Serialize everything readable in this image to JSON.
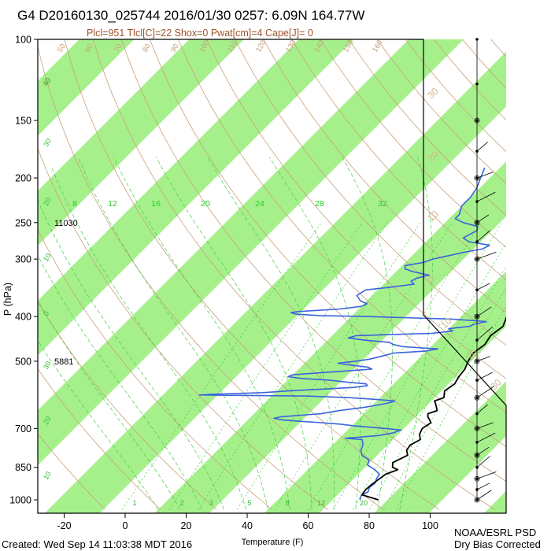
{
  "title": "G4 D20160130_025744 2016/01/30 0257:  6.09N 164.77W",
  "subtitle": "Plcl=951 Tlcl[C]=22 Shox=0 Pwat[cm]=4 Cape[J]= 0",
  "footer": {
    "created": "Created: Wed Sep 14 11:03:38 MDT 2016",
    "org": "NOAA/ESRL PSD",
    "note": "Dry Bias Corrected"
  },
  "colors": {
    "isotherm_band": "#a6f08c",
    "temperature": "#000000",
    "dewpoint": "#3a64dc",
    "dry_adiabat": "#c8a07a",
    "moist_adiabat": "#44cc44",
    "mixing_ratio": "#22cc22"
  },
  "chart_data": {
    "type": "line",
    "chart_kind": "Skew-T log-P diagram",
    "xlabel": "Temperature (F)",
    "ylabel": "P (hPa)",
    "xlim": [
      -30,
      100
    ],
    "ylim": [
      1000,
      100
    ],
    "y_scale": "log",
    "x_ticks": [
      "-20",
      "0",
      "20",
      "40",
      "60",
      "80",
      "100"
    ],
    "y_ticks": [
      "100",
      "150",
      "200",
      "250",
      "300",
      "400",
      "500",
      "700",
      "850",
      "1000"
    ],
    "height_labels": [
      {
        "pressure": 250,
        "text": "11030"
      },
      {
        "pressure": 500,
        "text": "5881"
      }
    ],
    "series": [
      {
        "label": "temperature",
        "points": [
          [
            1000,
            83
          ],
          [
            975,
            76
          ],
          [
            950,
            75.5
          ],
          [
            925,
            75.8
          ],
          [
            900,
            76.5
          ],
          [
            880,
            77
          ],
          [
            860,
            79.5
          ],
          [
            850,
            77
          ],
          [
            830,
            75.5
          ],
          [
            800,
            78
          ],
          [
            780,
            76
          ],
          [
            760,
            75.5
          ],
          [
            740,
            77
          ],
          [
            720,
            75
          ],
          [
            700,
            74
          ],
          [
            680,
            75
          ],
          [
            660,
            72
          ],
          [
            650,
            71
          ],
          [
            640,
            73
          ],
          [
            620,
            70.5
          ],
          [
            610,
            69
          ],
          [
            600,
            71
          ],
          [
            580,
            69
          ],
          [
            560,
            70
          ],
          [
            540,
            69
          ],
          [
            520,
            68.5
          ],
          [
            500,
            67
          ],
          [
            480,
            66
          ],
          [
            460,
            67
          ],
          [
            440,
            66
          ],
          [
            420,
            67
          ],
          [
            400,
            65
          ],
          [
            380,
            62.5
          ],
          [
            350,
            60
          ],
          [
            330,
            57
          ],
          [
            300,
            53
          ],
          [
            280,
            51
          ],
          [
            260,
            47
          ],
          [
            250,
            44.5
          ],
          [
            230,
            40
          ],
          [
            210,
            36
          ],
          [
            190,
            34
          ],
          [
            170,
            31
          ]
        ]
      },
      {
        "label": "dewpoint",
        "points": [
          [
            1000,
            77
          ],
          [
            980,
            76
          ],
          [
            960,
            77
          ],
          [
            940,
            76
          ],
          [
            920,
            76.5
          ],
          [
            900,
            75.5
          ],
          [
            880,
            75
          ],
          [
            860,
            72
          ],
          [
            840,
            68
          ],
          [
            820,
            67
          ],
          [
            800,
            63
          ],
          [
            780,
            61
          ],
          [
            760,
            60
          ],
          [
            740,
            58
          ],
          [
            735,
            52
          ],
          [
            725,
            62
          ],
          [
            715,
            66
          ],
          [
            705,
            67.5
          ],
          [
            700,
            62
          ],
          [
            690,
            50
          ],
          [
            685,
            46
          ],
          [
            680,
            39
          ],
          [
            675,
            31
          ],
          [
            670,
            25
          ],
          [
            665,
            22
          ],
          [
            660,
            24
          ],
          [
            650,
            36
          ],
          [
            640,
            41
          ],
          [
            630,
            48
          ],
          [
            620,
            53
          ],
          [
            615,
            55
          ],
          [
            610,
            56
          ],
          [
            605,
            49
          ],
          [
            600,
            40
          ],
          [
            595,
            25
          ],
          [
            592,
            -10
          ],
          [
            590,
            -6
          ],
          [
            585,
            10
          ],
          [
            580,
            18
          ],
          [
            575,
            28
          ],
          [
            570,
            38
          ],
          [
            565,
            42
          ],
          [
            560,
            41
          ],
          [
            555,
            34
          ],
          [
            550,
            28
          ],
          [
            545,
            18
          ],
          [
            540,
            13
          ],
          [
            535,
            14
          ],
          [
            530,
            22
          ],
          [
            525,
            30
          ],
          [
            520,
            38
          ],
          [
            515,
            36
          ],
          [
            510,
            30
          ],
          [
            505,
            25
          ],
          [
            500,
            30
          ],
          [
            495,
            34
          ],
          [
            490,
            36
          ],
          [
            485,
            38
          ],
          [
            480,
            40
          ],
          [
            475,
            50
          ],
          [
            470,
            53
          ],
          [
            465,
            41
          ],
          [
            460,
            37
          ],
          [
            455,
            35
          ],
          [
            450,
            26
          ],
          [
            445,
            20
          ],
          [
            440,
            22
          ],
          [
            435,
            46
          ],
          [
            430,
            52
          ],
          [
            425,
            50
          ],
          [
            420,
            56
          ],
          [
            415,
            57
          ],
          [
            410,
            60
          ],
          [
            405,
            48
          ],
          [
            400,
            20
          ],
          [
            398,
            3
          ],
          [
            395,
            -5
          ],
          [
            392,
            -7
          ],
          [
            390,
            -5
          ],
          [
            385,
            8
          ],
          [
            380,
            14
          ],
          [
            375,
            15
          ],
          [
            370,
            12
          ],
          [
            360,
            9
          ],
          [
            350,
            10
          ],
          [
            345,
            18
          ],
          [
            340,
            24
          ],
          [
            335,
            22
          ],
          [
            330,
            23
          ],
          [
            325,
            26
          ],
          [
            320,
            20
          ],
          [
            315,
            16
          ],
          [
            310,
            15
          ],
          [
            305,
            20
          ],
          [
            300,
            22
          ],
          [
            295,
            26
          ],
          [
            290,
            30
          ],
          [
            285,
            35
          ],
          [
            280,
            36
          ],
          [
            275,
            28
          ],
          [
            270,
            25
          ],
          [
            265,
            26
          ],
          [
            260,
            27
          ],
          [
            255,
            26
          ],
          [
            250,
            20
          ],
          [
            245,
            16
          ],
          [
            240,
            16
          ],
          [
            230,
            14
          ],
          [
            220,
            14
          ],
          [
            210,
            13
          ],
          [
            200,
            11
          ],
          [
            190,
            9
          ]
        ]
      }
    ],
    "mixing_ratio_labels_gkg": [
      "8",
      "12",
      "16",
      "20",
      "24",
      "28",
      "32"
    ],
    "mixing_ratio_bottom_labels": [
      "1",
      "2",
      "3",
      "5",
      "8",
      "12",
      "20"
    ],
    "dry_adiabat_labels": [
      "40",
      "50",
      "60",
      "70",
      "80",
      "90",
      "100",
      "110",
      "120",
      "130",
      "140",
      "150",
      "160"
    ],
    "isotherm_labels_c": [
      "30",
      "20",
      "10",
      "0",
      "10",
      "20",
      "30"
    ],
    "moist_adiabat_labels": [
      "40",
      "30",
      "20",
      "10",
      "0",
      "30",
      "20",
      "10"
    ],
    "wind_profile_pressures": [
      100,
      125,
      150,
      175,
      200,
      225,
      250,
      275,
      300,
      350,
      400,
      450,
      500,
      550,
      600,
      650,
      700,
      750,
      800,
      850,
      900,
      950,
      1000
    ]
  }
}
